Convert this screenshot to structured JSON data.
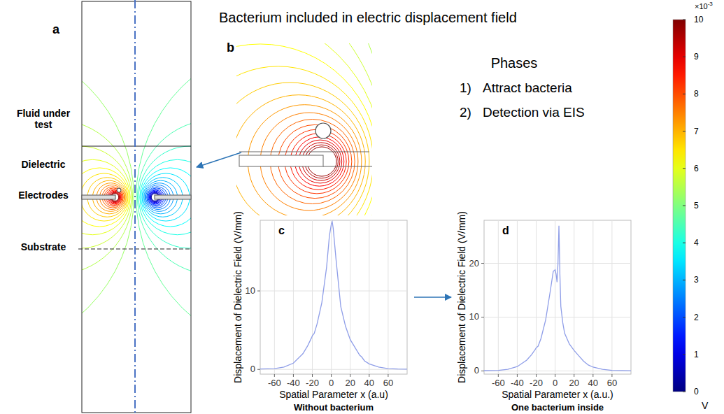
{
  "title": "Bacterium included in electric displacement field",
  "panel_a": {
    "letter": "a",
    "labels": [
      "Fluid under test",
      "Dielectric",
      "Electrodes",
      "Substrate"
    ]
  },
  "panel_b": {
    "letter": "b"
  },
  "phases": {
    "title": "Phases",
    "items": [
      {
        "number": "1)",
        "text": "Attract bacteria"
      },
      {
        "number": "2)",
        "text": "Detection via EIS"
      }
    ]
  },
  "color_bar": {
    "range": [
      0,
      10
    ],
    "ticks": [
      0,
      1,
      2,
      3,
      4,
      5,
      6,
      7,
      8,
      9,
      10
    ],
    "multiplier": "×10",
    "exponent": "-3",
    "unit": "V"
  },
  "chart_data": [
    {
      "type": "line",
      "title": "Without bacterium",
      "annotations": [
        "c"
      ],
      "xlabel": "Spatial Parameter x (a.u)",
      "ylabel": "Displacement of Dielectric Field (V/mm)",
      "x": [
        -75,
        -60,
        -50,
        -40,
        -30,
        -25,
        -21,
        -20,
        -18,
        -15,
        -10,
        -5,
        -2,
        0,
        1,
        2,
        5,
        10,
        15,
        20,
        25,
        30,
        32,
        35,
        40,
        50,
        60,
        70,
        80
      ],
      "values": [
        0.05,
        0.1,
        0.3,
        0.8,
        2.0,
        3.0,
        4.0,
        4.3,
        4.6,
        5.8,
        8.5,
        13,
        17,
        18.5,
        18.8,
        18,
        14,
        8,
        5.5,
        3.8,
        2.8,
        1.8,
        1.6,
        1.1,
        0.7,
        0.3,
        0.1,
        0.05,
        0.03
      ],
      "color": "#8f9ee8",
      "xlim": [
        -75,
        80
      ],
      "ylim": [
        -0.6,
        19
      ],
      "xticks": [
        -60,
        -40,
        -20,
        0,
        20,
        40,
        60
      ],
      "yticks": [
        0,
        10
      ],
      "grid": true
    },
    {
      "type": "line",
      "title": "One bacterium inside",
      "annotations": [
        "d"
      ],
      "xlabel": "Spatial Parameter x (a.u.)",
      "ylabel": "Displacement of Dielectric Field (V/mm)",
      "x": [
        -75,
        -60,
        -50,
        -40,
        -30,
        -25,
        -21,
        -20,
        -18,
        -15,
        -10,
        -5,
        -2,
        0,
        1,
        2,
        3,
        4,
        5,
        6,
        8,
        10,
        15,
        20,
        25,
        30,
        35,
        40,
        50,
        60,
        80
      ],
      "values": [
        0.05,
        0.1,
        0.3,
        0.8,
        2.0,
        3.0,
        4.0,
        4.3,
        4.6,
        6,
        9.5,
        15,
        18.5,
        18.8,
        18,
        16.5,
        20,
        27,
        18,
        12,
        9,
        7,
        5,
        3.8,
        2.8,
        1.8,
        1.1,
        0.7,
        0.3,
        0.1,
        0.03
      ],
      "color": "#8f9ee8",
      "xlim": [
        -75,
        80
      ],
      "ylim": [
        -0.6,
        28
      ],
      "xticks": [
        -60,
        -40,
        -20,
        0,
        20,
        40,
        60
      ],
      "yticks": [
        0,
        10,
        20
      ],
      "grid": true
    }
  ]
}
